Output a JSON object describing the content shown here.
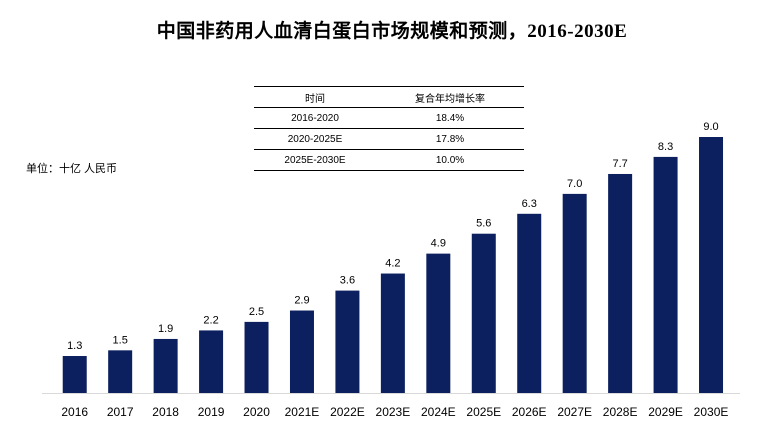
{
  "chart_data": {
    "type": "bar",
    "title": "中国非药用人血清白蛋白市场规模和预测，2016-2030E",
    "unit_label": "单位：十亿 人民币",
    "categories": [
      "2016",
      "2017",
      "2018",
      "2019",
      "2020",
      "2021E",
      "2022E",
      "2023E",
      "2024E",
      "2025E",
      "2026E",
      "2027E",
      "2028E",
      "2029E",
      "2030E"
    ],
    "values": [
      1.3,
      1.5,
      1.9,
      2.2,
      2.5,
      2.9,
      3.6,
      4.2,
      4.9,
      5.6,
      6.3,
      7.0,
      7.7,
      8.3,
      9.0
    ],
    "value_labels": [
      "1.3",
      "1.5",
      "1.9",
      "2.2",
      "2.5",
      "2.9",
      "3.6",
      "4.2",
      "4.9",
      "5.6",
      "6.3",
      "7.0",
      "7.7",
      "8.3",
      "9.0"
    ],
    "ylim": [
      0,
      9.0
    ],
    "bar_color": "#0c1f5e",
    "grid": false,
    "cagr_table": {
      "headers": [
        "时间",
        "复合年均增长率"
      ],
      "rows": [
        {
          "period": "2016-2020",
          "rate": "18.4%"
        },
        {
          "period": "2020-2025E",
          "rate": "17.8%"
        },
        {
          "period": "2025E-2030E",
          "rate": "10.0%"
        }
      ]
    }
  }
}
